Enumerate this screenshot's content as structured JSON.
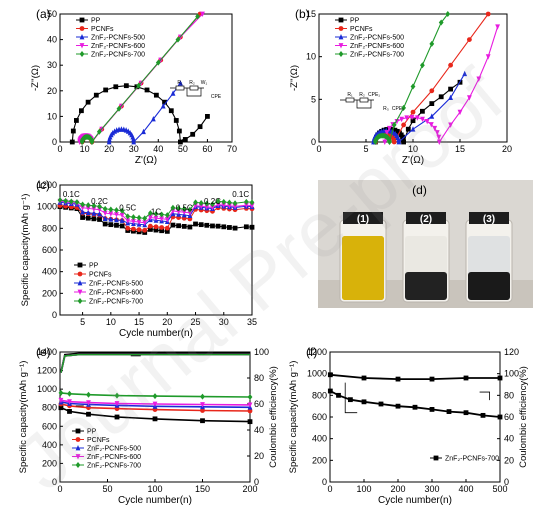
{
  "watermark": "Journal Pre-proof",
  "colors": {
    "PP": "#000000",
    "PCNFs": "#e8271b",
    "Z500": "#1a2bd6",
    "Z600": "#e81be0",
    "Z700": "#1f9a2a"
  },
  "legend_names": [
    "PP",
    "PCNFs",
    "ZnF₂-PCNFs-500",
    "ZnF₂-PCNFs-600",
    "ZnF₂-PCNFs-700"
  ],
  "chart_data": [
    {
      "id": "a",
      "panel_label": "(a)",
      "type": "line",
      "xlabel": "Z'(Ω)",
      "ylabel": "-Z''(Ω)",
      "xlim": [
        0,
        70
      ],
      "ylim": [
        0,
        50
      ],
      "xticks": [
        0,
        10,
        20,
        30,
        40,
        50,
        60,
        70
      ],
      "yticks": [
        0,
        10,
        20,
        30,
        40,
        50
      ],
      "legend": "top-left",
      "circuit_labels": [
        "R₁",
        "R₂",
        "W₁",
        "CPE"
      ],
      "series": [
        {
          "name": "PP",
          "semicircle": [
            5,
            49
          ],
          "tail": [
            [
              49,
              0
            ],
            [
              51,
              1
            ],
            [
              54,
              3
            ],
            [
              57,
              6
            ],
            [
              60,
              10
            ]
          ]
        },
        {
          "name": "PCNFs",
          "semicircle": [
            9,
            13
          ],
          "tail": [
            [
              13,
              0
            ],
            [
              17,
              5
            ],
            [
              25,
              14
            ],
            [
              33,
              23
            ],
            [
              41,
              32
            ],
            [
              49,
              41
            ],
            [
              57,
              50
            ]
          ]
        },
        {
          "name": "ZnF₂-PCNFs-500",
          "semicircle": [
            20,
            30
          ],
          "tail": [
            [
              30,
              0
            ],
            [
              34,
              4
            ],
            [
              38,
              9
            ],
            [
              42,
              14
            ],
            [
              46,
              19
            ],
            [
              49,
              23
            ]
          ]
        },
        {
          "name": "ZnF₂-PCNFs-600",
          "semicircle": [
            8,
            13
          ],
          "tail": [
            [
              13,
              0
            ],
            [
              17,
              5
            ],
            [
              25,
              14
            ],
            [
              33,
              23
            ],
            [
              41,
              32
            ],
            [
              49,
              41
            ],
            [
              58,
              50
            ]
          ]
        },
        {
          "name": "ZnF₂-PCNFs-700",
          "semicircle": [
            9,
            13
          ],
          "tail": [
            [
              13,
              0
            ],
            [
              16,
              4
            ],
            [
              24,
              13
            ],
            [
              32,
              22
            ],
            [
              40,
              31
            ],
            [
              48,
              40
            ],
            [
              56,
              49
            ]
          ]
        }
      ]
    },
    {
      "id": "b",
      "panel_label": "(b)",
      "type": "line",
      "xlabel": "Z'(Ω)",
      "ylabel": "-Z''(Ω)",
      "xlim": [
        0,
        20
      ],
      "ylim": [
        0,
        15
      ],
      "xticks": [
        0,
        5,
        10,
        15,
        20
      ],
      "yticks": [
        0,
        5,
        10,
        15
      ],
      "legend": "top-left",
      "circuit_labels": [
        "R₁",
        "R₂",
        "CPE₁",
        "R₃",
        "CPE₂"
      ],
      "series": [
        {
          "name": "PP",
          "semicircle": [
            6,
            9
          ],
          "tail": [
            [
              9,
              0
            ],
            [
              9.5,
              1.5
            ],
            [
              10,
              2.5
            ],
            [
              11,
              3.6
            ],
            [
              12,
              4.5
            ],
            [
              13,
              5.3
            ],
            [
              14,
              6.2
            ],
            [
              15,
              7
            ]
          ]
        },
        {
          "name": "PCNFs",
          "semicircle": [
            6,
            8
          ],
          "tail": [
            [
              8,
              0
            ],
            [
              9,
              2
            ],
            [
              10,
              3.5
            ],
            [
              12,
              6
            ],
            [
              14,
              9
            ],
            [
              16,
              12
            ],
            [
              18,
              15
            ]
          ]
        },
        {
          "name": "ZnF₂-PCNFs-500",
          "semicircle": [
            5.8,
            8.5
          ],
          "tail": [
            [
              8.5,
              0
            ],
            [
              10,
              1.5
            ],
            [
              12,
              3
            ],
            [
              14,
              5.2
            ],
            [
              15.5,
              8
            ]
          ]
        },
        {
          "name": "ZnF₂-PCNFs-600",
          "semicircle": [
            7,
            12.8
          ],
          "tail": [
            [
              12.8,
              0
            ],
            [
              14,
              2
            ],
            [
              15,
              3.5
            ],
            [
              16,
              5.2
            ],
            [
              17,
              7.4
            ],
            [
              18,
              10
            ],
            [
              19,
              13.5
            ]
          ]
        },
        {
          "name": "ZnF₂-PCNFs-700",
          "semicircle": [
            6,
            7.5
          ],
          "tail": [
            [
              7.5,
              0
            ],
            [
              8,
              2
            ],
            [
              9,
              4
            ],
            [
              10,
              6.5
            ],
            [
              11,
              9
            ],
            [
              12,
              11.5
            ],
            [
              13,
              14
            ],
            [
              13.7,
              15
            ]
          ]
        }
      ]
    },
    {
      "id": "c",
      "panel_label": "(c)",
      "type": "line",
      "xlabel": "Cycle number(n)",
      "ylabel": "Specific capacity(mAh g⁻¹)",
      "xlim": [
        1,
        35
      ],
      "ylim": [
        0,
        1200
      ],
      "xticks": [
        5,
        10,
        15,
        20,
        25,
        30,
        35
      ],
      "yticks": [
        0,
        200,
        400,
        600,
        800,
        1000,
        1200
      ],
      "legend": "bottom-left",
      "rate_labels": [
        {
          "x": 3,
          "y": 1090,
          "t": "0.1C"
        },
        {
          "x": 8,
          "y": 1025,
          "t": "0.2C"
        },
        {
          "x": 13,
          "y": 965,
          "t": "0.5C"
        },
        {
          "x": 18,
          "y": 930,
          "t": "1C"
        },
        {
          "x": 23,
          "y": 965,
          "t": "0.5C"
        },
        {
          "x": 28,
          "y": 1025,
          "t": "0.2C"
        },
        {
          "x": 33,
          "y": 1090,
          "t": "0.1C"
        }
      ],
      "series": [
        {
          "name": "PP",
          "levels": [
            1000,
            900,
            840,
            780,
            790,
            830,
            840,
            820
          ]
        },
        {
          "name": "PCNFs",
          "levels": [
            1010,
            940,
            890,
            800,
            820,
            905,
            975,
            990
          ]
        },
        {
          "name": "ZnF₂-PCNFs-500",
          "levels": [
            1040,
            950,
            890,
            850,
            880,
            935,
            1000,
            1010
          ]
        },
        {
          "name": "ZnF₂-PCNFs-600",
          "levels": [
            1050,
            990,
            940,
            870,
            900,
            960,
            1010,
            1020
          ]
        },
        {
          "name": "ZnF₂-PCNFs-700",
          "levels": [
            1060,
            1020,
            980,
            910,
            940,
            990,
            1040,
            1050
          ]
        }
      ]
    },
    {
      "id": "e",
      "panel_label": "(e)",
      "type": "line",
      "xlabel": "Cycle number(n)",
      "ylabel": "Specific capacity(mAh g⁻¹)",
      "y2label": "Coulombic efficiency(%)",
      "xlim": [
        0,
        200
      ],
      "ylim": [
        0,
        1400
      ],
      "y2lim": [
        0,
        100
      ],
      "xticks": [
        0,
        50,
        100,
        150,
        200
      ],
      "yticks": [
        0,
        200,
        400,
        600,
        800,
        1000,
        1200,
        1400
      ],
      "y2ticks": [
        0,
        20,
        40,
        60,
        80,
        100
      ],
      "legend": "bottom-left",
      "series": [
        {
          "name": "PP",
          "capacity": [
            [
              1,
              800
            ],
            [
              10,
              760
            ],
            [
              30,
              730
            ],
            [
              60,
              700
            ],
            [
              100,
              680
            ],
            [
              150,
              660
            ],
            [
              200,
              650
            ]
          ]
        },
        {
          "name": "PCNFs",
          "capacity": [
            [
              1,
              840
            ],
            [
              10,
              820
            ],
            [
              30,
              800
            ],
            [
              60,
              790
            ],
            [
              100,
              780
            ],
            [
              150,
              770
            ],
            [
              200,
              765
            ]
          ]
        },
        {
          "name": "ZnF₂-PCNFs-500",
          "capacity": [
            [
              1,
              860
            ],
            [
              10,
              845
            ],
            [
              30,
              835
            ],
            [
              60,
              825
            ],
            [
              100,
              815
            ],
            [
              150,
              810
            ],
            [
              200,
              805
            ]
          ]
        },
        {
          "name": "ZnF₂-PCNFs-600",
          "capacity": [
            [
              1,
              880
            ],
            [
              10,
              865
            ],
            [
              30,
              855
            ],
            [
              60,
              845
            ],
            [
              100,
              840
            ],
            [
              150,
              835
            ],
            [
              200,
              830
            ]
          ]
        },
        {
          "name": "ZnF₂-PCNFs-700",
          "capacity": [
            [
              1,
              960
            ],
            [
              10,
              950
            ],
            [
              30,
              940
            ],
            [
              60,
              930
            ],
            [
              100,
              925
            ],
            [
              150,
              920
            ],
            [
              200,
              915
            ]
          ]
        }
      ],
      "efficiency": [
        [
          1,
          85
        ],
        [
          5,
          98
        ],
        [
          20,
          99
        ],
        [
          200,
          99
        ]
      ]
    },
    {
      "id": "f",
      "panel_label": "(f)",
      "type": "line",
      "xlabel": "Cycle number(n)",
      "ylabel": "Specific capacity(mAh g⁻¹)",
      "y2label": "Coulombic efficiency(%)",
      "xlim": [
        0,
        500
      ],
      "ylim": [
        0,
        1200
      ],
      "y2lim": [
        0,
        120
      ],
      "xticks": [
        0,
        100,
        200,
        300,
        400,
        500
      ],
      "yticks": [
        0,
        200,
        400,
        600,
        800,
        1000,
        1200
      ],
      "y2ticks": [
        0,
        20,
        40,
        60,
        80,
        100,
        120
      ],
      "legend": "bottom-right",
      "series": [
        {
          "name": "ZnF₂-PCNFs-700",
          "capacity": [
            [
              1,
              840
            ],
            [
              25,
              800
            ],
            [
              60,
              760
            ],
            [
              100,
              740
            ],
            [
              150,
              720
            ],
            [
              200,
              700
            ],
            [
              250,
              690
            ],
            [
              300,
              670
            ],
            [
              350,
              650
            ],
            [
              400,
              640
            ],
            [
              450,
              615
            ],
            [
              500,
              600
            ]
          ]
        }
      ],
      "efficiency": [
        [
          1,
          99
        ],
        [
          100,
          96
        ],
        [
          200,
          95
        ],
        [
          300,
          95
        ],
        [
          400,
          96
        ],
        [
          500,
          96
        ]
      ]
    }
  ],
  "photo": {
    "panel_label": "(d)",
    "vial_labels": [
      "(1)",
      "(2)",
      "(3)"
    ]
  }
}
